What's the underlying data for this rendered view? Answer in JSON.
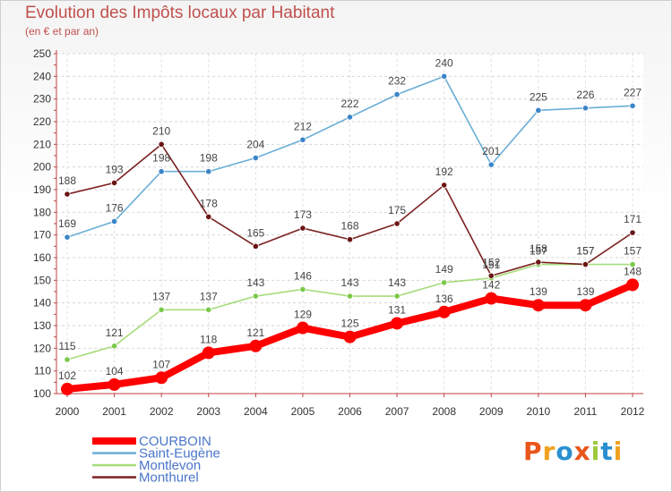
{
  "header": {
    "title": "Evolution des Impôts locaux par Habitant",
    "subtitle": "(en € et par an)"
  },
  "logo": {
    "letters": [
      "P",
      "r",
      "o",
      "x",
      "i",
      "t",
      "i"
    ],
    "colors": [
      "#e8561a",
      "#f0a020",
      "#2a8fd0",
      "#e8561a",
      "#9bc93a",
      "#2a8fd0",
      "#f0a020"
    ]
  },
  "chart_data": {
    "type": "line",
    "title": "Evolution des Impôts locaux par Habitant",
    "subtitle": "(en € et par an)",
    "xlabel": "",
    "ylabel": "",
    "categories": [
      "2000",
      "2001",
      "2002",
      "2003",
      "2004",
      "2005",
      "2006",
      "2007",
      "2008",
      "2009",
      "2010",
      "2011",
      "2012"
    ],
    "ylim": [
      100,
      250
    ],
    "yticks": [
      100,
      110,
      120,
      130,
      140,
      150,
      160,
      170,
      180,
      190,
      200,
      210,
      220,
      230,
      240,
      250
    ],
    "grid": true,
    "legend_position": "bottom-left",
    "series": [
      {
        "name": "COURBOIN",
        "color": "#ff0000",
        "marker_color": "#ff0000",
        "thick": true,
        "values": [
          102,
          104,
          107,
          118,
          121,
          129,
          125,
          131,
          136,
          142,
          139,
          139,
          148
        ]
      },
      {
        "name": "Saint-Eugène",
        "color": "#6aaed6",
        "marker_color": "#3a85c8",
        "thick": false,
        "values": [
          169,
          176,
          198,
          198,
          204,
          212,
          222,
          232,
          240,
          201,
          225,
          226,
          227
        ]
      },
      {
        "name": "Montlevon",
        "color": "#a6dc7a",
        "marker_color": "#7cc84a",
        "thick": false,
        "values": [
          115,
          121,
          137,
          137,
          143,
          146,
          143,
          143,
          149,
          151,
          157,
          157,
          157
        ]
      },
      {
        "name": "Monthurel",
        "color": "#7a2020",
        "marker_color": "#6b1515",
        "thick": false,
        "values": [
          188,
          193,
          210,
          178,
          165,
          173,
          168,
          175,
          192,
          152,
          158,
          157,
          171
        ]
      }
    ],
    "data_labels": [
      [
        "102",
        "104",
        "107",
        "118",
        "121",
        "129",
        "125",
        "131",
        "136",
        "142",
        "139",
        "139",
        "148"
      ],
      [
        "169",
        "176",
        "198",
        "198",
        "204",
        "212",
        "222",
        "232",
        "240",
        "201",
        "225",
        "226",
        "227"
      ],
      [
        "115",
        "121",
        "137",
        "137",
        "143",
        "146",
        "143",
        "143",
        "149",
        "151",
        "157",
        "157",
        "157"
      ],
      [
        "188",
        "193",
        "210",
        "178",
        "165",
        "173",
        "168",
        "175",
        "192",
        "152",
        "158",
        "157",
        "171"
      ]
    ]
  }
}
